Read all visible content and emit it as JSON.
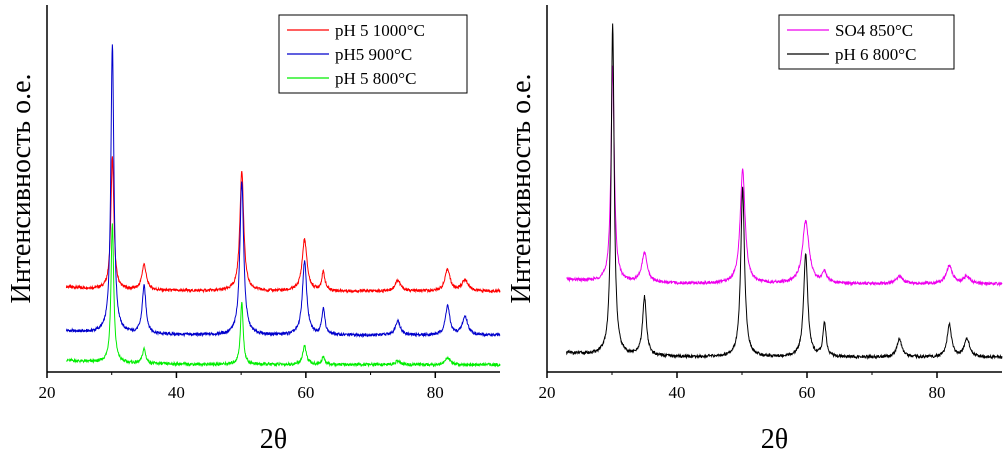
{
  "chart_data": [
    {
      "type": "line",
      "title": "",
      "xlabel": "2θ",
      "ylabel": "Интенсивность о.е.",
      "xlim": [
        20,
        90
      ],
      "ylim": [
        0,
        100
      ],
      "xticks": [
        20,
        40,
        60,
        80
      ],
      "yticks_visible": false,
      "legend_position": "top-right",
      "series": [
        {
          "name": "pH 5 1000°C",
          "color": "#ff0000",
          "baseline": 22,
          "peaks": [
            [
              30.1,
              36,
              0.28
            ],
            [
              35.0,
              7,
              0.4
            ],
            [
              50.1,
              33,
              0.35
            ],
            [
              59.8,
              14,
              0.45
            ],
            [
              62.7,
              5,
              0.3
            ],
            [
              74.2,
              3,
              0.5
            ],
            [
              81.9,
              6,
              0.45
            ],
            [
              84.6,
              3,
              0.6
            ]
          ]
        },
        {
          "name": "pH5 900°C",
          "color": "#0000cc",
          "baseline": 10,
          "peaks": [
            [
              30.1,
              79,
              0.28
            ],
            [
              35.0,
              13,
              0.35
            ],
            [
              50.1,
              42,
              0.35
            ],
            [
              59.8,
              20,
              0.4
            ],
            [
              62.7,
              7,
              0.3
            ],
            [
              74.2,
              4,
              0.45
            ],
            [
              81.9,
              8,
              0.4
            ],
            [
              84.6,
              5,
              0.5
            ]
          ]
        },
        {
          "name": "pH 5 800°C",
          "color": "#00ee00",
          "baseline": 2,
          "peaks": [
            [
              30.1,
              38,
              0.25
            ],
            [
              35.0,
              4,
              0.3
            ],
            [
              50.1,
              17,
              0.25
            ],
            [
              59.8,
              5,
              0.35
            ],
            [
              62.7,
              2,
              0.3
            ],
            [
              74.2,
              1,
              0.4
            ],
            [
              81.9,
              2,
              0.4
            ]
          ]
        }
      ]
    },
    {
      "type": "line",
      "title": "",
      "xlabel": "2θ",
      "ylabel": "Интенсивность о.е.",
      "xlim": [
        20,
        90
      ],
      "ylim": [
        0,
        100
      ],
      "xticks": [
        20,
        40,
        60,
        80
      ],
      "yticks_visible": false,
      "legend_position": "top-right",
      "series": [
        {
          "name": "SO4 850°C",
          "color": "#ee00ee",
          "baseline": 24,
          "peaks": [
            [
              30.1,
              59,
              0.3
            ],
            [
              35.0,
              8,
              0.5
            ],
            [
              50.1,
              31,
              0.45
            ],
            [
              59.8,
              17,
              0.6
            ],
            [
              62.7,
              3,
              0.4
            ],
            [
              74.2,
              2,
              0.6
            ],
            [
              81.9,
              5,
              0.55
            ],
            [
              84.6,
              2,
              0.6
            ]
          ]
        },
        {
          "name": "pH 6 800°C",
          "color": "#000000",
          "baseline": 4,
          "peaks": [
            [
              30.1,
              90,
              0.28
            ],
            [
              35.0,
              16,
              0.35
            ],
            [
              50.1,
              46,
              0.35
            ],
            [
              59.8,
              28,
              0.38
            ],
            [
              62.7,
              9,
              0.3
            ],
            [
              74.2,
              5,
              0.45
            ],
            [
              81.9,
              9,
              0.4
            ],
            [
              84.6,
              5,
              0.5
            ]
          ]
        }
      ]
    }
  ]
}
